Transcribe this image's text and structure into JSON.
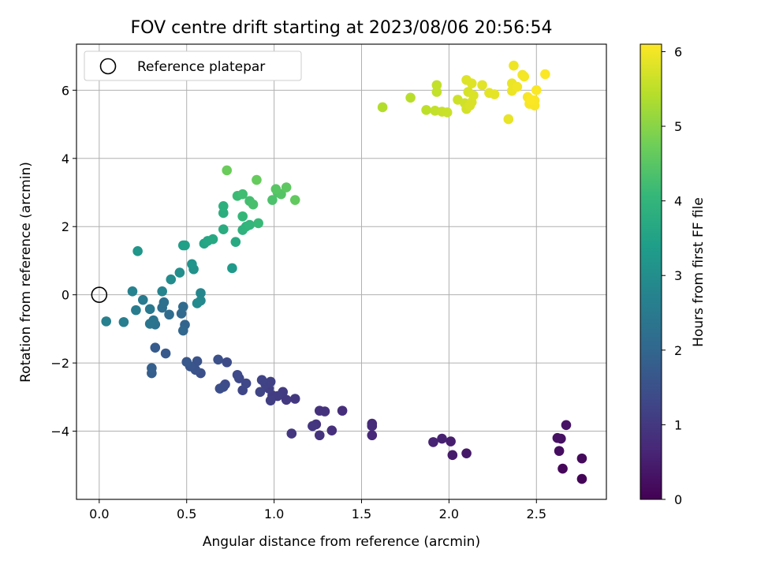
{
  "chart_data": {
    "type": "scatter",
    "title": "FOV centre drift starting at 2023/08/06 20:56:54",
    "xlabel": "Angular distance from reference (arcmin)",
    "ylabel": "Rotation from reference (arcmin)",
    "xlim": [
      -0.13,
      2.9
    ],
    "ylim": [
      -6.0,
      7.35
    ],
    "xticks": [
      0.0,
      0.5,
      1.0,
      1.5,
      2.0,
      2.5
    ],
    "xtick_labels": [
      "0.0",
      "0.5",
      "1.0",
      "1.5",
      "2.0",
      "2.5"
    ],
    "yticks": [
      -4,
      -2,
      0,
      2,
      4,
      6
    ],
    "ytick_labels": [
      "−4",
      "−2",
      "0",
      "2",
      "4",
      "6"
    ],
    "grid": true,
    "legend": {
      "position": "top-left",
      "entries": [
        {
          "label": "Reference platepar",
          "marker": "open-circle"
        }
      ]
    },
    "reference_point": {
      "x": 0.0,
      "y": 0.0
    },
    "colorbar": {
      "label": "Hours from first FF file",
      "min": 0,
      "max": 6.1,
      "ticks": [
        0,
        1,
        2,
        3,
        4,
        5,
        6
      ],
      "tick_labels": [
        "0",
        "1",
        "2",
        "3",
        "4",
        "5",
        "6"
      ],
      "colormap": "viridis",
      "stops": [
        "#440154",
        "#482878",
        "#3e4a89",
        "#31688e",
        "#26828e",
        "#1f9e89",
        "#35b779",
        "#6ece58",
        "#b5de2b",
        "#fde725"
      ]
    },
    "points": [
      [
        2.76,
        -5.4,
        0.05
      ],
      [
        2.65,
        -5.1,
        0.1
      ],
      [
        2.76,
        -4.8,
        0.15
      ],
      [
        2.63,
        -4.58,
        0.2
      ],
      [
        2.64,
        -4.22,
        0.25
      ],
      [
        2.62,
        -4.2,
        0.28
      ],
      [
        2.67,
        -3.82,
        0.32
      ],
      [
        2.1,
        -4.65,
        0.4
      ],
      [
        2.02,
        -4.7,
        0.45
      ],
      [
        2.01,
        -4.3,
        0.5
      ],
      [
        1.96,
        -4.22,
        0.55
      ],
      [
        1.91,
        -4.32,
        0.6
      ],
      [
        1.56,
        -4.12,
        0.7
      ],
      [
        1.56,
        -3.78,
        0.72
      ],
      [
        1.56,
        -3.85,
        0.75
      ],
      [
        1.39,
        -3.4,
        0.8
      ],
      [
        1.33,
        -3.98,
        0.82
      ],
      [
        1.26,
        -3.4,
        0.85
      ],
      [
        1.29,
        -3.42,
        0.88
      ],
      [
        1.26,
        -4.12,
        0.9
      ],
      [
        1.24,
        -3.8,
        0.92
      ],
      [
        1.22,
        -3.85,
        0.95
      ],
      [
        1.1,
        -4.07,
        0.97
      ],
      [
        1.12,
        -3.05,
        1.0
      ],
      [
        1.07,
        -3.08,
        1.02
      ],
      [
        1.05,
        -2.85,
        1.05
      ],
      [
        1.02,
        -2.97,
        1.08
      ],
      [
        0.99,
        -2.95,
        1.1
      ],
      [
        0.98,
        -3.1,
        1.12
      ],
      [
        0.97,
        -2.75,
        1.15
      ],
      [
        0.98,
        -2.55,
        1.18
      ],
      [
        0.95,
        -2.62,
        1.2
      ],
      [
        0.93,
        -2.5,
        1.22
      ],
      [
        0.92,
        -2.85,
        1.25
      ],
      [
        0.82,
        -2.8,
        1.28
      ],
      [
        0.84,
        -2.6,
        1.3
      ],
      [
        0.8,
        -2.45,
        1.32
      ],
      [
        0.79,
        -2.35,
        1.35
      ],
      [
        0.72,
        -2.63,
        1.38
      ],
      [
        0.73,
        -1.98,
        1.4
      ],
      [
        0.71,
        -2.7,
        1.42
      ],
      [
        0.69,
        -2.75,
        1.45
      ],
      [
        0.68,
        -1.9,
        1.48
      ],
      [
        0.58,
        -2.3,
        1.5
      ],
      [
        0.56,
        -1.95,
        1.55
      ],
      [
        0.55,
        -2.2,
        1.58
      ],
      [
        0.52,
        -2.1,
        1.6
      ],
      [
        0.5,
        -1.97,
        1.65
      ],
      [
        0.38,
        -1.72,
        1.7
      ],
      [
        0.32,
        -1.55,
        1.75
      ],
      [
        0.3,
        -2.3,
        1.8
      ],
      [
        0.3,
        -2.15,
        1.85
      ],
      [
        0.49,
        -0.88,
        1.95
      ],
      [
        0.48,
        -1.05,
        2.0
      ],
      [
        0.47,
        -0.55,
        2.05
      ],
      [
        0.48,
        -0.35,
        2.1
      ],
      [
        0.4,
        -0.58,
        2.15
      ],
      [
        0.36,
        -0.38,
        2.2
      ],
      [
        0.37,
        -0.22,
        2.25
      ],
      [
        0.32,
        -0.87,
        2.3
      ],
      [
        0.31,
        -0.75,
        2.35
      ],
      [
        0.29,
        -0.85,
        2.4
      ],
      [
        0.29,
        -0.42,
        2.45
      ],
      [
        0.25,
        -0.15,
        2.5
      ],
      [
        0.21,
        -0.45,
        2.55
      ],
      [
        0.14,
        -0.8,
        2.6
      ],
      [
        0.04,
        -0.78,
        2.65
      ],
      [
        0.19,
        0.1,
        2.7
      ],
      [
        0.36,
        0.1,
        2.75
      ],
      [
        0.58,
        0.05,
        2.8
      ],
      [
        0.58,
        -0.17,
        2.85
      ],
      [
        0.56,
        -0.25,
        2.9
      ],
      [
        0.41,
        0.45,
        2.95
      ],
      [
        0.46,
        0.65,
        3.0
      ],
      [
        0.54,
        0.75,
        3.1
      ],
      [
        0.53,
        0.9,
        3.15
      ],
      [
        0.22,
        1.28,
        3.2
      ],
      [
        0.76,
        0.78,
        3.3
      ],
      [
        0.48,
        1.45,
        3.4
      ],
      [
        0.49,
        1.45,
        3.45
      ],
      [
        0.6,
        1.5,
        3.55
      ],
      [
        0.62,
        1.58,
        3.6
      ],
      [
        0.65,
        1.63,
        3.65
      ],
      [
        0.78,
        1.55,
        3.7
      ],
      [
        0.71,
        1.92,
        3.75
      ],
      [
        0.71,
        2.4,
        3.8
      ],
      [
        0.71,
        2.6,
        3.85
      ],
      [
        0.82,
        1.9,
        3.9
      ],
      [
        0.84,
        2.0,
        3.95
      ],
      [
        0.86,
        2.05,
        4.0
      ],
      [
        0.82,
        2.3,
        4.05
      ],
      [
        0.91,
        2.1,
        4.1
      ],
      [
        0.79,
        2.9,
        4.15
      ],
      [
        0.82,
        2.95,
        4.2
      ],
      [
        0.86,
        2.75,
        4.25
      ],
      [
        0.88,
        2.65,
        4.3
      ],
      [
        0.99,
        2.78,
        4.35
      ],
      [
        1.02,
        3.0,
        4.4
      ],
      [
        1.04,
        2.95,
        4.45
      ],
      [
        1.01,
        3.1,
        4.5
      ],
      [
        1.07,
        3.15,
        4.55
      ],
      [
        1.12,
        2.78,
        4.6
      ],
      [
        0.9,
        3.37,
        4.65
      ],
      [
        0.73,
        3.65,
        4.7
      ],
      [
        1.62,
        5.5,
        5.4
      ],
      [
        1.78,
        5.78,
        5.45
      ],
      [
        1.87,
        5.42,
        5.5
      ],
      [
        1.92,
        5.4,
        5.55
      ],
      [
        1.93,
        6.15,
        5.55
      ],
      [
        1.93,
        5.95,
        5.55
      ],
      [
        1.96,
        5.37,
        5.6
      ],
      [
        1.99,
        5.35,
        5.62
      ],
      [
        2.05,
        5.72,
        5.65
      ],
      [
        2.09,
        5.62,
        5.68
      ],
      [
        2.1,
        5.45,
        5.7
      ],
      [
        2.11,
        5.95,
        5.72
      ],
      [
        2.12,
        5.55,
        5.74
      ],
      [
        2.13,
        5.65,
        5.76
      ],
      [
        2.14,
        5.85,
        5.78
      ],
      [
        2.1,
        6.3,
        5.8
      ],
      [
        2.13,
        6.2,
        5.82
      ],
      [
        2.19,
        6.15,
        5.84
      ],
      [
        2.23,
        5.92,
        5.86
      ],
      [
        2.26,
        5.88,
        5.88
      ],
      [
        2.34,
        5.15,
        5.9
      ],
      [
        2.36,
        6.2,
        5.92
      ],
      [
        2.36,
        5.98,
        5.94
      ],
      [
        2.37,
        6.72,
        5.96
      ],
      [
        2.39,
        6.1,
        5.98
      ],
      [
        2.42,
        6.45,
        6.0
      ],
      [
        2.43,
        6.4,
        6.02
      ],
      [
        2.45,
        5.8,
        6.03
      ],
      [
        2.46,
        5.6,
        6.04
      ],
      [
        2.49,
        5.55,
        6.05
      ],
      [
        2.49,
        5.7,
        6.06
      ],
      [
        2.5,
        6.0,
        6.07
      ],
      [
        2.55,
        6.47,
        6.08
      ],
      [
        2.47,
        5.72,
        6.09
      ]
    ]
  }
}
